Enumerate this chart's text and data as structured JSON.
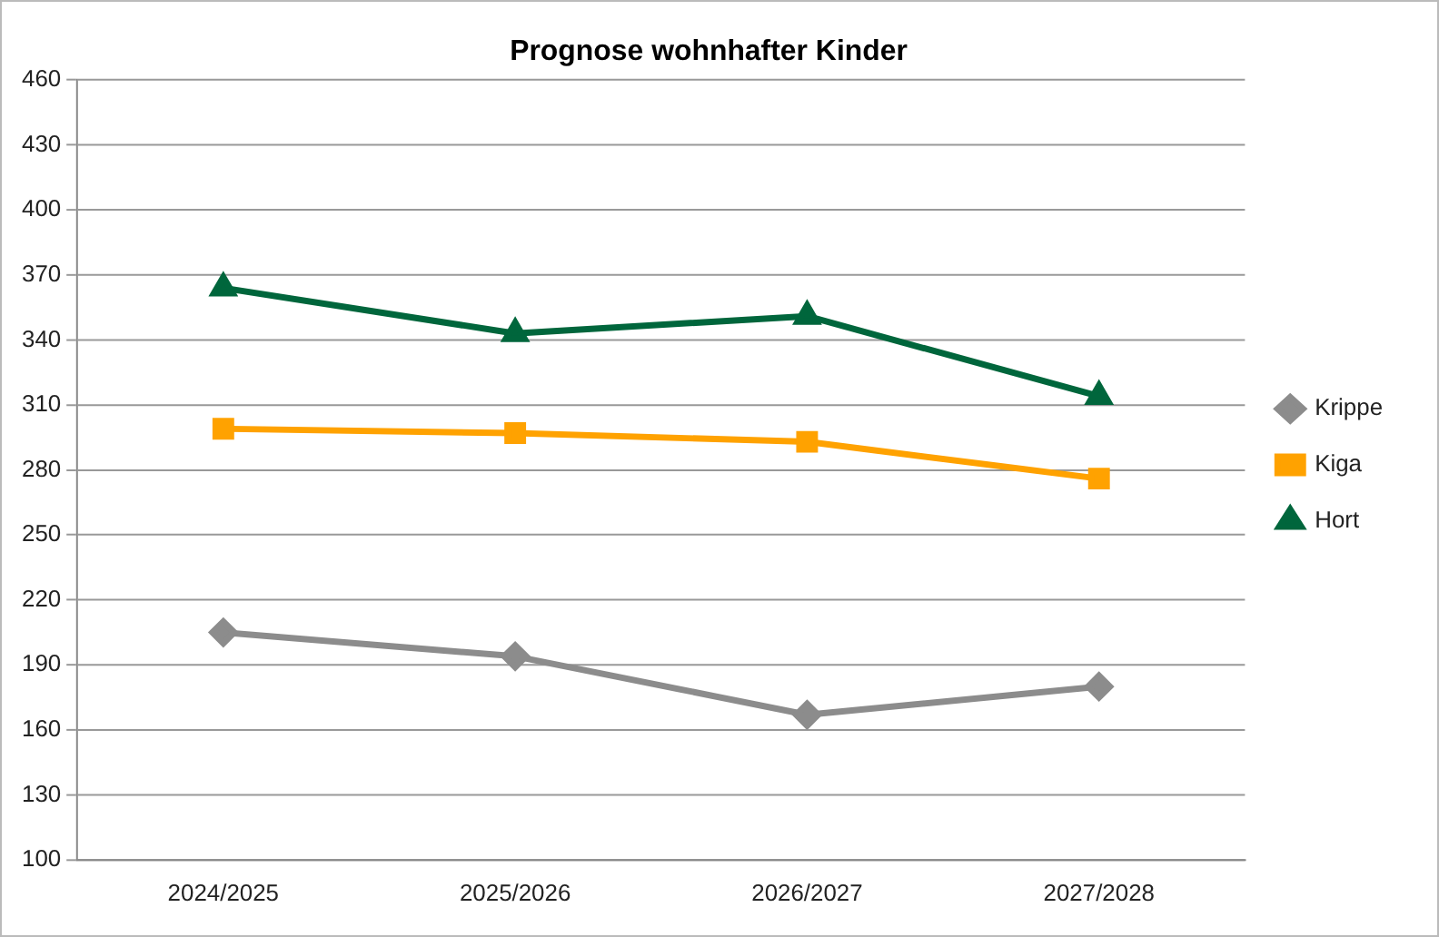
{
  "chart_data": {
    "type": "line",
    "title": "Prognose wohnhafter Kinder",
    "categories": [
      "2024/2025",
      "2025/2026",
      "2026/2027",
      "2027/2028"
    ],
    "series": [
      {
        "name": "Krippe",
        "color": "#8c8c8c",
        "marker": "diamond",
        "values": [
          205,
          194,
          167,
          180
        ]
      },
      {
        "name": "Kiga",
        "color": "#ffa200",
        "marker": "square",
        "values": [
          299,
          297,
          293,
          276
        ]
      },
      {
        "name": "Hort",
        "color": "#00663c",
        "marker": "triangle",
        "values": [
          364,
          343,
          351,
          314
        ]
      }
    ],
    "ylim": [
      100,
      460
    ],
    "yticks": [
      100,
      130,
      160,
      190,
      220,
      250,
      280,
      310,
      340,
      370,
      400,
      430,
      460
    ],
    "grid": "y",
    "legend": "right",
    "line_style": "solid"
  }
}
